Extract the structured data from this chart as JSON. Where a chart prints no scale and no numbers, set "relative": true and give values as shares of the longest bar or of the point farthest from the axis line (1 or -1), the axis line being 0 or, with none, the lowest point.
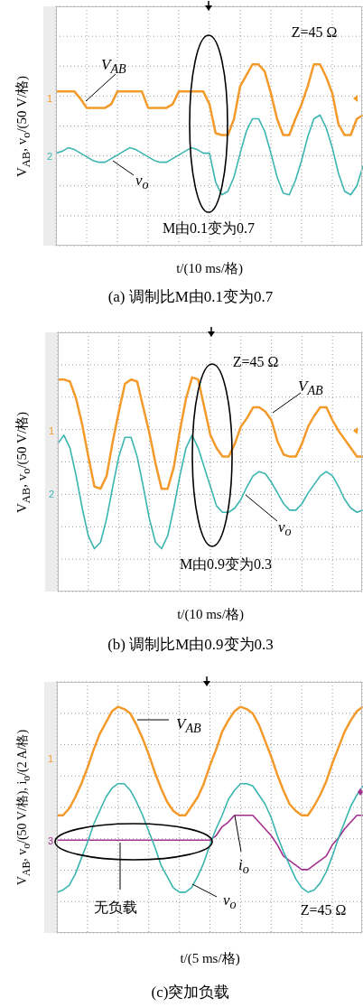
{
  "chart_data": [
    {
      "type": "line",
      "relative": true,
      "grid": true,
      "title": "(a) 调制比M由0.1变为0.7",
      "xlabel": "t/(10 ms/格)",
      "ylabel": "V$_{AB}$, v$_{o}$/(50 V/格)",
      "annotations": [
        "Z=45 Ω",
        "M由0.1变为0.7",
        "1",
        "2"
      ],
      "categories": [
        null,
        null,
        null,
        null,
        null,
        null,
        null,
        null,
        null,
        null,
        null,
        null,
        null,
        null,
        null,
        null,
        null,
        null,
        null,
        null,
        null,
        null,
        null,
        null,
        null,
        null,
        null,
        null,
        null,
        null,
        null,
        null,
        null,
        null,
        null,
        null,
        null,
        null,
        null,
        null,
        null,
        null,
        null,
        null,
        null,
        null,
        null,
        null,
        null,
        null,
        null
      ],
      "series": [
        {
          "name": "V$_{AB}$",
          "color": "#f39a2a",
          "values": [
            0.85,
            0.85,
            0.85,
            0.85,
            0.81,
            0.76,
            0.76,
            0.76,
            0.76,
            0.78,
            0.85,
            0.85,
            0.85,
            0.85,
            0.85,
            0.76,
            0.76,
            0.76,
            0.76,
            0.78,
            0.85,
            0.85,
            0.85,
            0.85,
            0.85,
            0.78,
            0.62,
            0.61,
            0.61,
            0.7,
            0.88,
            0.94,
            1,
            1,
            0.96,
            0.84,
            0.7,
            0.61,
            0.61,
            0.7,
            0.78,
            0.88,
            1,
            1,
            0.93,
            0.84,
            0.67,
            0.61,
            0.61,
            0.7,
            0.72
          ]
        },
        {
          "name": "v$_{o}$",
          "color": "#3ab5b0",
          "values": [
            0.51,
            0.52,
            0.54,
            0.53,
            0.51,
            0.49,
            0.47,
            0.46,
            0.46,
            0.48,
            0.5,
            0.52,
            0.54,
            0.53,
            0.51,
            0.49,
            0.47,
            0.46,
            0.46,
            0.48,
            0.5,
            0.52,
            0.54,
            0.53,
            0.51,
            0.51,
            0.35,
            0.28,
            0.3,
            0.38,
            0.51,
            0.63,
            0.7,
            0.7,
            0.63,
            0.51,
            0.38,
            0.29,
            0.28,
            0.36,
            0.47,
            0.6,
            0.7,
            0.72,
            0.65,
            0.54,
            0.4,
            0.3,
            0.28,
            0.33,
            0.44
          ]
        }
      ]
    },
    {
      "type": "line",
      "relative": true,
      "grid": true,
      "title": "(b) 调制比M由0.9变为0.3",
      "xlabel": "t/(10 ms/格)",
      "ylabel": "V$_{AB}$, v$_{o}$/(50 V/格)",
      "annotations": [
        "Z=45 Ω",
        "M由0.9变为0.3",
        "1",
        "2"
      ],
      "categories": [
        null,
        null,
        null,
        null,
        null,
        null,
        null,
        null,
        null,
        null,
        null,
        null,
        null,
        null,
        null,
        null,
        null,
        null,
        null,
        null,
        null,
        null,
        null,
        null,
        null,
        null,
        null,
        null,
        null,
        null,
        null,
        null,
        null,
        null,
        null,
        null,
        null,
        null,
        null,
        null,
        null,
        null,
        null,
        null,
        null,
        null,
        null,
        null,
        null,
        null,
        null
      ],
      "series": [
        {
          "name": "V$_{AB}$",
          "color": "#f39a2a",
          "values": [
            0.99,
            0.99,
            0.98,
            0.9,
            0.78,
            0.63,
            0.49,
            0.48,
            0.54,
            0.7,
            0.84,
            0.97,
            0.99,
            0.98,
            0.86,
            0.74,
            0.6,
            0.48,
            0.48,
            0.58,
            0.75,
            0.9,
            1,
            0.99,
            0.86,
            0.73,
            0.67,
            0.63,
            0.63,
            0.69,
            0.77,
            0.81,
            0.86,
            0.86,
            0.84,
            0.8,
            0.7,
            0.64,
            0.63,
            0.63,
            0.69,
            0.77,
            0.82,
            0.86,
            0.86,
            0.8,
            0.75,
            0.71,
            0.67,
            0.63,
            0.63
          ]
        },
        {
          "name": "v$_{o}$",
          "color": "#3ab5b0",
          "values": [
            0.69,
            0.73,
            0.67,
            0.54,
            0.39,
            0.26,
            0.2,
            0.23,
            0.34,
            0.49,
            0.63,
            0.72,
            0.72,
            0.63,
            0.49,
            0.34,
            0.23,
            0.2,
            0.26,
            0.39,
            0.54,
            0.67,
            0.73,
            0.67,
            0.58,
            0.49,
            0.4,
            0.37,
            0.37,
            0.39,
            0.43,
            0.49,
            0.54,
            0.56,
            0.55,
            0.51,
            0.46,
            0.41,
            0.38,
            0.38,
            0.41,
            0.46,
            0.5,
            0.54,
            0.56,
            0.54,
            0.49,
            0.43,
            0.39,
            0.37,
            0.38
          ]
        }
      ]
    },
    {
      "type": "line",
      "relative": true,
      "grid": true,
      "title": "(c)突加负载",
      "xlabel": "t/(5 ms/格)",
      "ylabel": "V$_{AB}$, v$_{o}$/(50 V/格), i$_{o}$/(2 A/格)",
      "annotations": [
        "Z=45 Ω",
        "无负载",
        "1",
        "3"
      ],
      "categories": [
        null,
        null,
        null,
        null,
        null,
        null,
        null,
        null,
        null,
        null,
        null,
        null,
        null,
        null,
        null,
        null,
        null,
        null,
        null,
        null,
        null,
        null,
        null,
        null,
        null,
        null,
        null,
        null,
        null,
        null,
        null,
        null,
        null,
        null,
        null,
        null,
        null,
        null,
        null,
        null,
        null,
        null,
        null,
        null,
        null,
        null,
        null,
        null,
        null,
        null,
        null
      ],
      "series": [
        {
          "name": "V$_{AB}$",
          "color": "#f39a2a",
          "values": [
            0.52,
            0.52,
            0.55,
            0.6,
            0.66,
            0.73,
            0.81,
            0.88,
            0.93,
            0.98,
            1,
            0.99,
            0.97,
            0.92,
            0.86,
            0.79,
            0.71,
            0.64,
            0.58,
            0.54,
            0.52,
            0.52,
            0.56,
            0.6,
            0.66,
            0.74,
            0.81,
            0.89,
            0.94,
            0.98,
            1,
            0.99,
            0.97,
            0.92,
            0.85,
            0.78,
            0.7,
            0.63,
            0.57,
            0.54,
            0.52,
            0.52,
            0.56,
            0.61,
            0.67,
            0.75,
            0.82,
            0.89,
            0.94,
            0.98,
            1
          ]
        },
        {
          "name": "i$_{o}$",
          "color": "#a3308f",
          "values": [
            0.41,
            0.41,
            0.41,
            0.41,
            0.41,
            0.41,
            0.41,
            0.41,
            0.41,
            0.41,
            0.41,
            0.41,
            0.41,
            0.41,
            0.41,
            0.41,
            0.41,
            0.41,
            0.41,
            0.41,
            0.41,
            0.41,
            0.41,
            0.41,
            0.41,
            0.41,
            0.43,
            0.47,
            0.49,
            0.52,
            0.52,
            0.52,
            0.52,
            0.49,
            0.46,
            0.43,
            0.39,
            0.34,
            0.32,
            0.3,
            0.28,
            0.28,
            0.3,
            0.32,
            0.34,
            0.39,
            0.42,
            0.46,
            0.49,
            0.52,
            0.52
          ]
        },
        {
          "name": "v$_{o}$",
          "color": "#3ab5b0",
          "values": [
            0.18,
            0.19,
            0.21,
            0.26,
            0.33,
            0.4,
            0.48,
            0.54,
            0.6,
            0.64,
            0.66,
            0.66,
            0.63,
            0.58,
            0.52,
            0.45,
            0.38,
            0.3,
            0.25,
            0.2,
            0.18,
            0.18,
            0.2,
            0.25,
            0.31,
            0.39,
            0.46,
            0.52,
            0.59,
            0.63,
            0.66,
            0.66,
            0.65,
            0.61,
            0.57,
            0.51,
            0.43,
            0.36,
            0.3,
            0.24,
            0.2,
            0.18,
            0.19,
            0.22,
            0.27,
            0.34,
            0.42,
            0.49,
            0.56,
            0.61,
            0.65
          ]
        }
      ]
    }
  ]
}
